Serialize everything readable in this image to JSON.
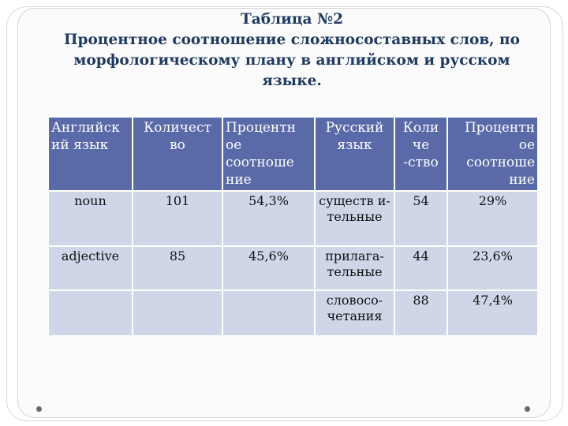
{
  "slide": {
    "title_lines": [
      "Таблица №2",
      "Процентное соотношение сложносоставных слов, по",
      "морфологическому плану в английском и русском",
      "языке."
    ]
  },
  "table": {
    "headers": [
      "Английск ий язык",
      "Количест во",
      "Процентн ое соотноше ние",
      "Русский язык",
      "Коли че -ство",
      "Процентн ое соотноше ние"
    ],
    "rows": [
      [
        "noun",
        "101",
        "54,3%",
        "существ и- тельные",
        "54",
        "29%"
      ],
      [
        "adjective",
        "85",
        "45,6%",
        "прилага- тельные",
        "44",
        "23,6%"
      ],
      [
        "",
        "",
        "",
        "словосо- четания",
        "88",
        "47,4%"
      ]
    ]
  }
}
